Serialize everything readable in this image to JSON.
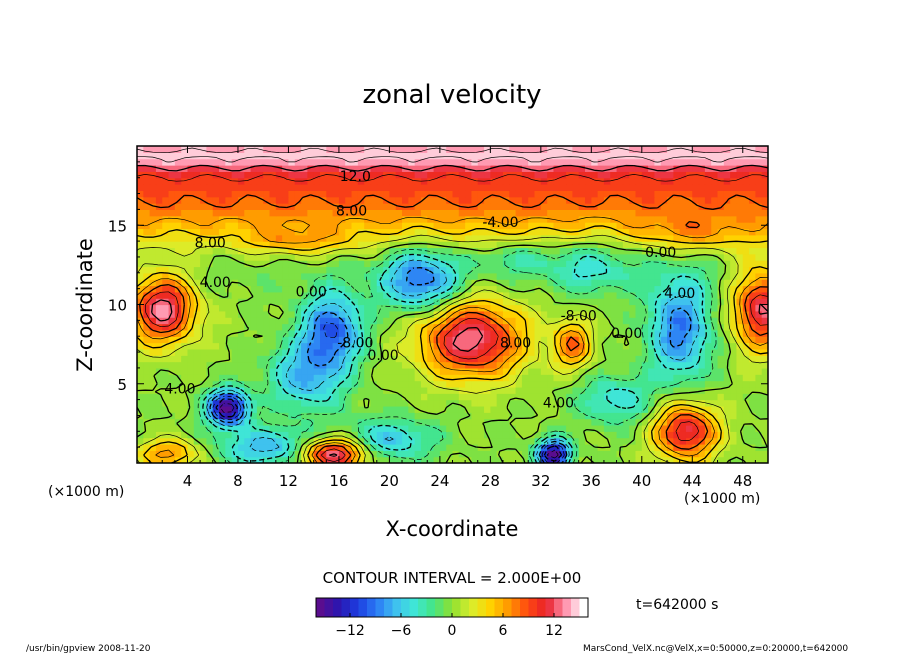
{
  "chart_data": {
    "type": "heatmap",
    "title": "zonal velocity",
    "xlabel": "X-coordinate",
    "ylabel": "Z-coordinate",
    "x_unit_left": "(×1000 m)",
    "x_unit_right": "(×1000 m)",
    "xlim": [
      0,
      50
    ],
    "ylim": [
      0,
      20
    ],
    "x_ticks": [
      4,
      8,
      12,
      16,
      20,
      24,
      28,
      32,
      36,
      40,
      44,
      48
    ],
    "y_ticks": [
      5,
      10,
      15
    ],
    "contour_interval_text": "CONTOUR INTERVAL = 2.000E+00",
    "time_text": "t=642000 s",
    "colorbar": {
      "min": -16,
      "max": 16,
      "ticks": [
        -12,
        -6,
        0,
        6,
        12
      ]
    },
    "contour_labels": [
      {
        "text": "12.0",
        "x": 17.3,
        "y": 17.8
      },
      {
        "text": "8.00",
        "x": 17.0,
        "y": 15.6
      },
      {
        "text": "-4.00",
        "x": 28.8,
        "y": 14.9
      },
      {
        "text": "8.00",
        "x": 5.8,
        "y": 13.6
      },
      {
        "text": "4.00",
        "x": 6.2,
        "y": 11.1
      },
      {
        "text": "0.00",
        "x": 13.8,
        "y": 10.5
      },
      {
        "text": "0.00",
        "x": 41.5,
        "y": 13.0
      },
      {
        "text": "0.00",
        "x": 38.8,
        "y": 7.9
      },
      {
        "text": "4.00",
        "x": 43.0,
        "y": 10.4
      },
      {
        "text": "-8.00",
        "x": 17.3,
        "y": 7.3
      },
      {
        "text": "0.00",
        "x": 19.5,
        "y": 6.5
      },
      {
        "text": "8.00",
        "x": 30.0,
        "y": 7.3
      },
      {
        "text": "4.00",
        "x": 33.4,
        "y": 3.5
      },
      {
        "text": "4.00",
        "x": 3.4,
        "y": 4.4
      },
      {
        "text": "-8.00",
        "x": 35.0,
        "y": 9.0
      }
    ]
  },
  "footer": {
    "left": "/usr/bin/gpview   2008-11-20",
    "right": "MarsCond_VelX.nc@VelX,x=0:50000,z=0:20000,t=642000"
  },
  "colors": {
    "scale": [
      "#5a0d8f",
      "#2a16b0",
      "#1c3de0",
      "#2b7bf5",
      "#3fc0f0",
      "#3fe6d6",
      "#44e585",
      "#8fe030",
      "#d8ee2e",
      "#ffd400",
      "#ff9800",
      "#ff4a10",
      "#e8202a",
      "#ff8faa",
      "#ffffff"
    ]
  }
}
